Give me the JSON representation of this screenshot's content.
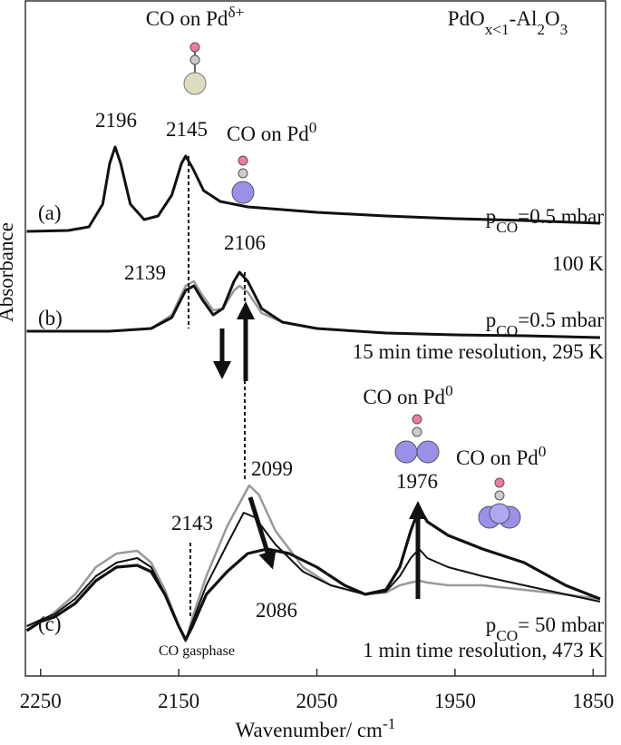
{
  "chart_data": {
    "type": "line",
    "title": [
      {
        "t": "PdO"
      },
      {
        "t": "x<1",
        "sub": true
      },
      {
        "t": "-Al"
      },
      {
        "t": "2",
        "sub": true
      },
      {
        "t": "O"
      },
      {
        "t": "3",
        "sub": true
      }
    ],
    "x_label": [
      {
        "t": "Wavenumber/ cm"
      },
      {
        "t": "-1",
        "sup": true
      }
    ],
    "y_label": "Absorbance",
    "xlim": [
      2261,
      1841
    ],
    "ylim": [
      0,
      74.5
    ],
    "xticks": [
      2250,
      2150,
      2050,
      1950,
      1850
    ],
    "series": [
      {
        "color": "#111111",
        "line_width": 3,
        "x": [
          2260,
          2230,
          2215,
          2205,
          2200,
          2196,
          2192,
          2185,
          2175,
          2165,
          2155,
          2148,
          2145,
          2140,
          2132,
          2120,
          2100,
          2050,
          2000,
          1950,
          1900,
          1845
        ],
        "values": [
          49.0,
          49.1,
          49.5,
          52.0,
          56.5,
          58.3,
          56.5,
          52.0,
          50.3,
          50.7,
          53.0,
          56.5,
          57.3,
          56.0,
          53.5,
          52.3,
          51.7,
          51.1,
          50.7,
          50.4,
          50.2,
          49.9
        ]
      },
      {
        "color": "#999999",
        "line_width": 2.5,
        "x": [
          2260,
          2200,
          2170,
          2155,
          2145,
          2139,
          2133,
          2125,
          2118,
          2110,
          2106,
          2100,
          2090,
          2075,
          2050,
          2000,
          1950,
          1900,
          1845
        ],
        "values": [
          38.0,
          38.0,
          38.3,
          39.8,
          43.0,
          43.5,
          42.0,
          40.3,
          40.5,
          42.5,
          43.0,
          42.3,
          40.0,
          39.0,
          38.3,
          37.8,
          37.6,
          37.5,
          37.3
        ]
      },
      {
        "color": "#111111",
        "line_width": 3,
        "x": [
          2260,
          2200,
          2170,
          2155,
          2145,
          2139,
          2133,
          2125,
          2118,
          2110,
          2106,
          2100,
          2090,
          2075,
          2050,
          2000,
          1950,
          1900,
          1845
        ],
        "values": [
          38.0,
          38.0,
          38.3,
          39.5,
          42.5,
          43.0,
          41.5,
          39.8,
          40.5,
          43.5,
          44.5,
          43.5,
          40.5,
          39.0,
          38.3,
          37.8,
          37.6,
          37.5,
          37.3
        ]
      },
      {
        "color": "#999999",
        "line_width": 2.5,
        "x": [
          2260,
          2250,
          2240,
          2225,
          2210,
          2195,
          2180,
          2170,
          2160,
          2150,
          2145,
          2140,
          2130,
          2115,
          2099,
          2092,
          2080,
          2060,
          2040,
          2015,
          2000,
          1990,
          1982,
          1976,
          1970,
          1955,
          1930,
          1900,
          1870,
          1845
        ],
        "values": [
          5.5,
          6.0,
          7.0,
          9.0,
          12.0,
          13.5,
          13.8,
          12.5,
          9.5,
          5.5,
          3.8,
          6.5,
          11.0,
          16.5,
          21.0,
          20.0,
          16.0,
          12.0,
          10.0,
          9.0,
          9.2,
          10.0,
          10.3,
          10.5,
          10.3,
          10.0,
          10.0,
          9.5,
          9.0,
          8.5
        ]
      },
      {
        "color": "#111111",
        "line_width": 2,
        "x": [
          2260,
          2250,
          2240,
          2225,
          2210,
          2195,
          2180,
          2170,
          2160,
          2150,
          2145,
          2140,
          2130,
          2115,
          2103,
          2095,
          2080,
          2060,
          2040,
          2015,
          2000,
          1990,
          1982,
          1976,
          1970,
          1955,
          1930,
          1900,
          1870,
          1845
        ],
        "values": [
          5.5,
          6.2,
          6.8,
          8.5,
          11.0,
          12.5,
          13.0,
          12.0,
          9.0,
          5.5,
          4.0,
          6.0,
          10.0,
          14.5,
          18.0,
          17.5,
          14.5,
          11.5,
          10.0,
          9.0,
          9.3,
          11.0,
          13.0,
          14.0,
          13.0,
          12.0,
          11.0,
          10.0,
          9.0,
          8.2
        ]
      },
      {
        "color": "#111111",
        "line_width": 3.2,
        "x": [
          2260,
          2250,
          2240,
          2225,
          2210,
          2195,
          2180,
          2170,
          2160,
          2150,
          2145,
          2140,
          2130,
          2115,
          2100,
          2086,
          2070,
          2050,
          2030,
          2015,
          2000,
          1990,
          1982,
          1976,
          1970,
          1955,
          1930,
          1900,
          1870,
          1845
        ],
        "values": [
          5.0,
          6.0,
          6.5,
          8.0,
          10.5,
          12.0,
          12.2,
          11.5,
          9.0,
          5.5,
          4.0,
          5.5,
          9.0,
          11.5,
          13.5,
          14.0,
          13.5,
          12.0,
          10.0,
          9.0,
          9.5,
          12.0,
          16.0,
          18.5,
          17.0,
          15.5,
          14.0,
          12.5,
          10.0,
          8.5
        ]
      }
    ],
    "annotations": [
      [
        {
          "t": "CO on Pd"
        },
        {
          "t": "δ+",
          "sup": true
        }
      ],
      [
        {
          "t": "2196"
        }
      ],
      [
        {
          "t": "2145"
        }
      ],
      [
        {
          "t": "CO on Pd"
        },
        {
          "t": "0",
          "sup": true
        }
      ],
      [
        {
          "t": "(a)"
        }
      ],
      [
        {
          "t": "p"
        },
        {
          "t": "CO",
          "sub": true
        },
        {
          "t": "=0.5 mbar"
        }
      ],
      [
        {
          "t": "100 K"
        }
      ],
      [
        {
          "t": "2139"
        }
      ],
      [
        {
          "t": "2106"
        }
      ],
      [
        {
          "t": "(b)"
        }
      ],
      [
        {
          "t": "p"
        },
        {
          "t": "CO",
          "sub": true
        },
        {
          "t": "=0.5 mbar"
        }
      ],
      [
        {
          "t": "15 min time resolution, 295 K"
        }
      ],
      [
        {
          "t": "CO on Pd"
        },
        {
          "t": "0",
          "sup": true
        }
      ],
      [
        {
          "t": "2099"
        }
      ],
      [
        {
          "t": "CO on Pd"
        },
        {
          "t": "0",
          "sup": true
        }
      ],
      [
        {
          "t": "1976"
        }
      ],
      [
        {
          "t": "2143"
        }
      ],
      [
        {
          "t": "(c)"
        }
      ],
      [
        {
          "t": "2086"
        }
      ],
      [
        {
          "t": "p"
        },
        {
          "t": "CO",
          "sub": true
        },
        {
          "t": "= 50 mbar"
        }
      ],
      [
        {
          "t": "CO gasphase"
        }
      ],
      [
        {
          "t": "1 min time resolution, 473 K"
        }
      ]
    ]
  }
}
